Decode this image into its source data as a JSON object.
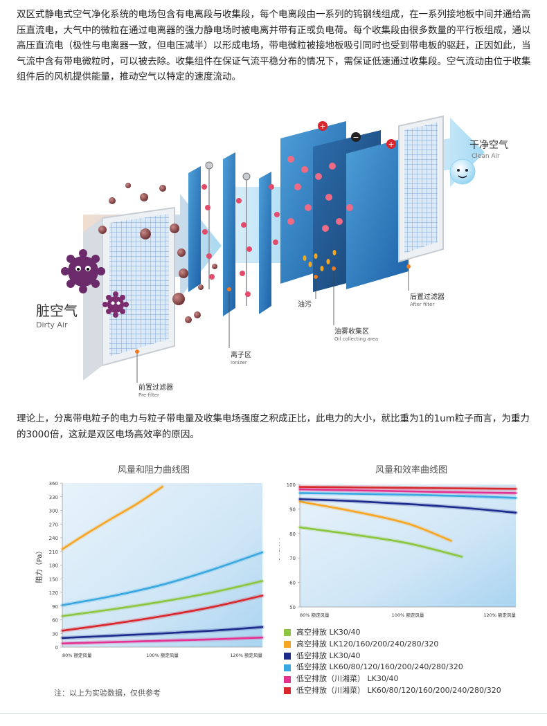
{
  "intro": "双区式静电式空气净化系统的电场包含有电离段与收集段，每个电离段由一系列的钨钢线组成，在一系列接地板中间并通给高压直流电，大气中的微粒在通过电离器的强力静电场时被电离并带有正或负电荷。每个收集段由很多数量的平行板组成，通以高压直流电（极性与电离器一致，但电压减半）以形成电场，带电微粒被接地板吸引同时也受到带电板的驱赶，正因如此，当气流中含有带电微粒时，可以被去除。收集组件在保证气流平稳分布的情况下，需保证低速通过收集段。空气流动由位于收集组件后的风机提供能量，推动空气以特定的速度流动。",
  "theory": "理论上，分离带电粒子的电力与粒子带电量及收集电场强度之积成正比，此电力的大小，就比重为1的1um粒子而言，为重力的3000倍，这就是双区电场高效率的原因。",
  "diagram": {
    "dirty_air_cn": "脏空气",
    "dirty_air_en": "Dirty Air",
    "clean_air_cn": "干净空气",
    "clean_air_en": "Clean Air",
    "prefilter_cn": "前置过滤器",
    "prefilter_en": "Pre-filter",
    "ionizer_cn": "离子区",
    "ionizer_en": "Ionizer",
    "oil_cn": "油污",
    "collect_cn": "油雾收集区",
    "collect_en": "Oil collecting area",
    "after_cn": "后置过滤器",
    "after_en": "After filter",
    "plus_sign": "+",
    "minus_sign": "−"
  },
  "chart_data": [
    {
      "type": "line",
      "title": "风量和阻力曲线图",
      "xlabel": "",
      "ylabel": "阻力（Pa）",
      "x": [
        80,
        90,
        100,
        110,
        120
      ],
      "xticks": [
        80,
        100,
        120
      ],
      "xtick_labels": [
        "80% 额定风量",
        "100% 额定风量",
        "120% 额定风量"
      ],
      "ylim": [
        0,
        360
      ],
      "yticks": [
        0,
        30,
        60,
        90,
        120,
        150,
        180,
        210,
        240,
        270,
        300,
        330,
        360
      ],
      "series": [
        {
          "color": "#f6a623",
          "values": [
            215,
            250,
            283,
            315,
            352
          ],
          "x": [
            80,
            85,
            90,
            95,
            100
          ]
        },
        {
          "color": "#3aa8e0",
          "values": [
            92,
            112,
            137,
            170,
            208
          ]
        },
        {
          "color": "#8cc63f",
          "values": [
            68,
            83,
            100,
            120,
            145
          ]
        },
        {
          "color": "#d9262c",
          "values": [
            36,
            51,
            68,
            88,
            113
          ]
        },
        {
          "color": "#1c2a8c",
          "values": [
            20,
            25,
            30,
            36,
            44
          ]
        },
        {
          "color": "#e4318f",
          "values": [
            8,
            11,
            14,
            17,
            21
          ]
        }
      ]
    },
    {
      "type": "line",
      "title": "风量和效率曲线图",
      "xlabel": "",
      "ylabel": "净化效率%",
      "x": [
        80,
        90,
        100,
        110,
        120
      ],
      "xticks": [
        80,
        100,
        120
      ],
      "xtick_labels": [
        "80% 额定风量",
        "100% 额定风量",
        "120% 额定风量"
      ],
      "ylim": [
        50,
        100
      ],
      "yticks": [
        50,
        60,
        70,
        80,
        90,
        100
      ],
      "series": [
        {
          "name": "高空排放 LK30/40",
          "color": "#8cc63f",
          "x": [
            80,
            90,
            100,
            110
          ],
          "values": [
            82.5,
            79.5,
            76,
            70.5
          ]
        },
        {
          "name": "高空排放 LK120/160/200/240/280/320",
          "color": "#f6a623",
          "x": [
            80,
            90,
            100,
            108
          ],
          "values": [
            93,
            89,
            84,
            77
          ]
        },
        {
          "name": "低空排放 LK30/40",
          "color": "#1c2a8c",
          "x": [
            80,
            90,
            100,
            110,
            120
          ],
          "values": [
            94,
            93.2,
            92,
            90.5,
            88.5
          ]
        },
        {
          "name": "低空排放 LK60/80/120/160/200/240/280/320",
          "color": "#3aa8e0",
          "x": [
            80,
            90,
            100,
            110,
            120
          ],
          "values": [
            96.5,
            96.2,
            95.8,
            95.3,
            94.5
          ]
        },
        {
          "name": "低空排放（川湘菜） LK30/40",
          "color": "#e4318f",
          "x": [
            80,
            90,
            100,
            110,
            120
          ],
          "values": [
            98,
            97.6,
            97.2,
            96.8,
            96.5
          ]
        },
        {
          "name": "低空排放（川湘菜） LK60/80/120/160/200/240/280/320",
          "color": "#d9262c",
          "x": [
            80,
            90,
            100,
            110,
            120
          ],
          "values": [
            99,
            98.8,
            98.6,
            98.4,
            98.2
          ]
        }
      ]
    }
  ],
  "note": "注：以上为实验数据，仅供参考"
}
